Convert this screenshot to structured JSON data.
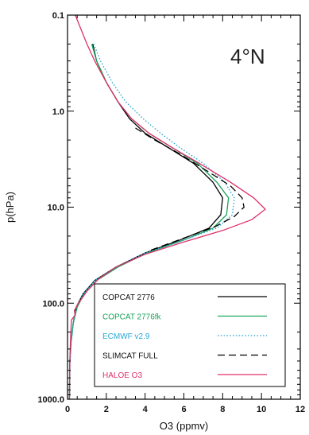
{
  "chart_data": {
    "type": "line",
    "title": "",
    "annotation": "4°N",
    "xlabel": "O3 (ppmv)",
    "ylabel": "p(hPa)",
    "xlim": [
      0,
      12
    ],
    "ylim": [
      1000,
      0.1
    ],
    "yscale": "log",
    "legend_position": "bottom-right",
    "x_ticks": [
      "0",
      "2",
      "4",
      "6",
      "8",
      "10",
      "12"
    ],
    "y_ticks": [
      "0.1",
      "1.0",
      "10.0",
      "100.0",
      "1000.0"
    ],
    "series": [
      {
        "name": "COPCAT 2776",
        "color": "#000000",
        "dash": "solid",
        "points": [
          [
            1.3,
            0.2
          ],
          [
            1.5,
            0.3
          ],
          [
            2.0,
            0.5
          ],
          [
            2.6,
            0.8
          ],
          [
            3.2,
            1.2
          ],
          [
            4.0,
            1.7
          ],
          [
            5.2,
            2.4
          ],
          [
            6.5,
            3.5
          ],
          [
            7.5,
            5.5
          ],
          [
            8.0,
            8.0
          ],
          [
            7.9,
            12.0
          ],
          [
            7.3,
            16.5
          ],
          [
            5.8,
            22.0
          ],
          [
            4.0,
            30.0
          ],
          [
            2.5,
            42.0
          ],
          [
            1.4,
            58.0
          ],
          [
            0.8,
            80.0
          ],
          [
            0.45,
            110.0
          ],
          [
            0.3,
            160.0
          ],
          [
            0.18,
            250.0
          ],
          [
            0.12,
            400.0
          ],
          [
            0.1,
            1000.0
          ]
        ]
      },
      {
        "name": "COPCAT 2776fk",
        "color": "#1aa35a",
        "dash": "solid",
        "points": [
          [
            1.25,
            0.2
          ],
          [
            1.5,
            0.3
          ],
          [
            2.0,
            0.5
          ],
          [
            2.6,
            0.8
          ],
          [
            3.3,
            1.2
          ],
          [
            4.2,
            1.7
          ],
          [
            5.4,
            2.4
          ],
          [
            6.7,
            3.5
          ],
          [
            7.7,
            5.5
          ],
          [
            8.3,
            8.0
          ],
          [
            8.2,
            12.0
          ],
          [
            7.5,
            16.5
          ],
          [
            6.0,
            22.0
          ],
          [
            4.1,
            30.0
          ],
          [
            2.6,
            42.0
          ],
          [
            1.5,
            58.0
          ],
          [
            0.85,
            80.0
          ],
          [
            0.5,
            110.0
          ],
          [
            0.3,
            160.0
          ],
          [
            0.18,
            250.0
          ],
          [
            0.12,
            400.0
          ],
          [
            0.1,
            1000.0
          ]
        ]
      },
      {
        "name": "ECMWF v2.9",
        "color": "#2aa8d8",
        "dash": "dotted",
        "points": [
          [
            1.35,
            0.2
          ],
          [
            1.7,
            0.3
          ],
          [
            2.3,
            0.5
          ],
          [
            3.0,
            0.8
          ],
          [
            3.9,
            1.2
          ],
          [
            4.8,
            1.7
          ],
          [
            5.8,
            2.4
          ],
          [
            7.0,
            3.5
          ],
          [
            8.1,
            5.5
          ],
          [
            8.6,
            8.0
          ],
          [
            8.5,
            12.0
          ],
          [
            7.7,
            16.5
          ],
          [
            6.0,
            22.0
          ],
          [
            4.0,
            30.0
          ],
          [
            2.5,
            42.0
          ],
          [
            1.4,
            58.0
          ],
          [
            0.8,
            80.0
          ],
          [
            0.45,
            110.0
          ],
          [
            0.3,
            160.0
          ],
          [
            0.2,
            250.0
          ],
          [
            0.14,
            400.0
          ],
          [
            0.1,
            1000.0
          ]
        ]
      },
      {
        "name": "SLIMCAT FULL",
        "color": "#000000",
        "dash": "dashed",
        "points": [
          [
            3.5,
            1.5
          ],
          [
            4.5,
            2.0
          ],
          [
            5.8,
            2.8
          ],
          [
            7.2,
            4.2
          ],
          [
            8.4,
            6.0
          ],
          [
            9.0,
            8.0
          ],
          [
            9.1,
            10.0
          ],
          [
            8.6,
            12.5
          ],
          [
            7.6,
            16.0
          ],
          [
            6.0,
            21.0
          ],
          [
            4.3,
            28.0
          ]
        ]
      },
      {
        "name": "HALOE O3",
        "color": "#e0306a",
        "dash": "solid",
        "points": [
          [
            0.4,
            0.1
          ],
          [
            1.0,
            0.2
          ],
          [
            1.4,
            0.3
          ],
          [
            2.0,
            0.5
          ],
          [
            2.6,
            0.8
          ],
          [
            3.3,
            1.2
          ],
          [
            4.2,
            1.7
          ],
          [
            5.4,
            2.4
          ],
          [
            6.8,
            3.5
          ],
          [
            8.4,
            5.5
          ],
          [
            9.6,
            8.0
          ],
          [
            10.2,
            10.5
          ],
          [
            9.5,
            13.5
          ],
          [
            8.0,
            17.5
          ],
          [
            6.0,
            23.0
          ],
          [
            4.0,
            31.0
          ],
          [
            2.5,
            42.0
          ],
          [
            1.6,
            56.0
          ],
          [
            1.0,
            75.0
          ],
          [
            0.5,
            105.0
          ],
          [
            0.35,
            120.0
          ],
          [
            0.4,
            132.0
          ],
          [
            0.2,
            150.0
          ],
          [
            0.15,
            250.0
          ],
          [
            0.12,
            400.0
          ],
          [
            0.1,
            1000.0
          ]
        ]
      }
    ]
  }
}
